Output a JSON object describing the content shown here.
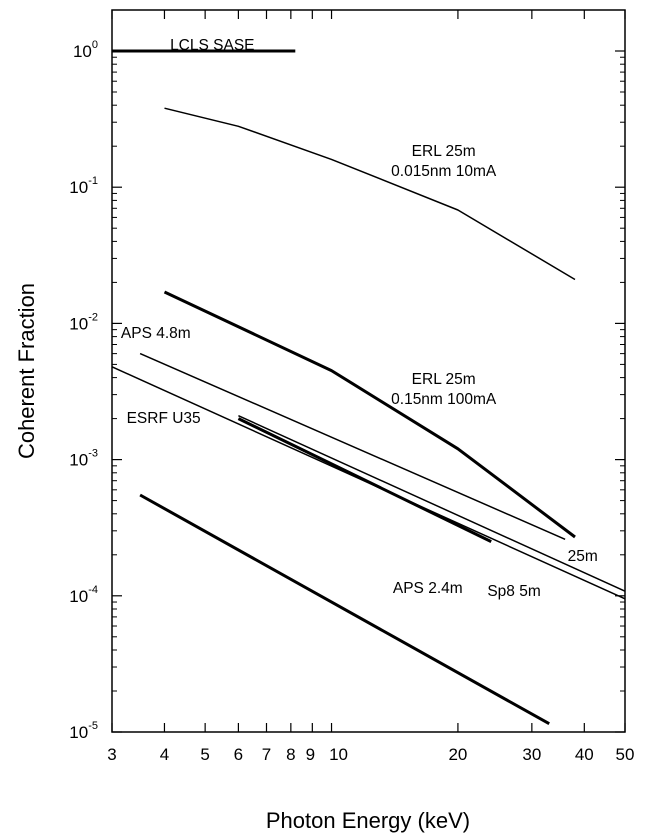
{
  "chart_data": {
    "type": "line",
    "xlabel": "Photon Energy (keV)",
    "ylabel": "Coherent Fraction",
    "xscale": "log",
    "yscale": "log",
    "xlim": [
      3,
      50
    ],
    "ylim": [
      1e-05,
      2
    ],
    "grid": false,
    "xticks": [
      {
        "value": 3,
        "label": "3"
      },
      {
        "value": 4,
        "label": "4"
      },
      {
        "value": 5,
        "label": "5"
      },
      {
        "value": 6,
        "label": "6"
      },
      {
        "value": 7,
        "label": "7"
      },
      {
        "value": 8,
        "label": "8"
      },
      {
        "value": 9,
        "label": "9"
      },
      {
        "value": 10,
        "label": "10"
      },
      {
        "value": 20,
        "label": "20"
      },
      {
        "value": 30,
        "label": "30"
      },
      {
        "value": 40,
        "label": "40"
      },
      {
        "value": 50,
        "label": "50"
      }
    ],
    "yticks": [
      {
        "value": 1,
        "base": "10",
        "exp": "0"
      },
      {
        "value": 0.1,
        "base": "10",
        "exp": "-1"
      },
      {
        "value": 0.01,
        "base": "10",
        "exp": "-2"
      },
      {
        "value": 0.001,
        "base": "10",
        "exp": "-3"
      },
      {
        "value": 0.0001,
        "base": "10",
        "exp": "-4"
      },
      {
        "value": 1e-05,
        "base": "10",
        "exp": "-5"
      }
    ],
    "series": [
      {
        "id": "lcls",
        "width": 3,
        "x": [
          3,
          8.2
        ],
        "y": [
          1.0,
          1.0
        ]
      },
      {
        "id": "erl-0015",
        "width": 1.5,
        "x": [
          4,
          6,
          10,
          20,
          38
        ],
        "y": [
          0.38,
          0.28,
          0.16,
          0.068,
          0.021
        ]
      },
      {
        "id": "erl-015",
        "width": 3,
        "x": [
          4,
          10,
          20,
          38
        ],
        "y": [
          0.017,
          0.0045,
          0.0012,
          0.00027
        ]
      },
      {
        "id": "aps-48",
        "width": 1.5,
        "x": [
          3.5,
          36
        ],
        "y": [
          0.006,
          0.00026
        ]
      },
      {
        "id": "sp8-5m",
        "width": 1.5,
        "x": [
          3,
          50
        ],
        "y": [
          0.0048,
          9.5e-05
        ]
      },
      {
        "id": "aps-25m",
        "width": 1.5,
        "x": [
          6,
          50
        ],
        "y": [
          0.0021,
          0.000108
        ]
      },
      {
        "id": "esrf-u35",
        "width": 3,
        "x": [
          6,
          24
        ],
        "y": [
          0.002,
          0.00025
        ]
      },
      {
        "id": "aps-24",
        "width": 3,
        "x": [
          3.5,
          33
        ],
        "y": [
          0.00055,
          1.15e-05
        ]
      }
    ],
    "annotations": [
      {
        "id": "lcls",
        "lines": [
          "LCLS SASE"
        ],
        "x": 5.2,
        "y": 1.02,
        "anchor": "middle"
      },
      {
        "id": "erl-0015",
        "lines": [
          "ERL 25m",
          "0.015nm 10mA"
        ],
        "x": 18.5,
        "y": 0.17,
        "anchor": "middle"
      },
      {
        "id": "erl-015",
        "lines": [
          "ERL 25m",
          "0.15nm 100mA"
        ],
        "x": 18.5,
        "y": 0.0036,
        "anchor": "middle"
      },
      {
        "id": "aps-48",
        "lines": [
          "APS 4.8m"
        ],
        "x": 3.15,
        "y": 0.0078,
        "anchor": "start"
      },
      {
        "id": "esrf-u35",
        "lines": [
          "ESRF U35"
        ],
        "x": 3.25,
        "y": 0.00185,
        "anchor": "start"
      },
      {
        "id": "aps-25m",
        "lines": [
          "25m"
        ],
        "x": 36.5,
        "y": 0.00018,
        "anchor": "start"
      },
      {
        "id": "sp8-5m",
        "lines": [
          "Sp8 5m"
        ],
        "x": 23.5,
        "y": 0.0001,
        "anchor": "start"
      },
      {
        "id": "aps-24",
        "lines": [
          "APS 2.4m"
        ],
        "x": 14,
        "y": 0.000105,
        "anchor": "start"
      }
    ]
  }
}
